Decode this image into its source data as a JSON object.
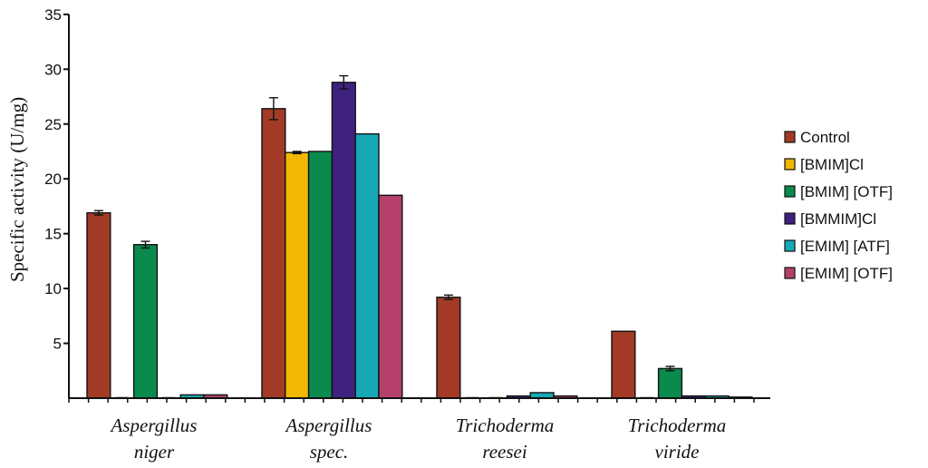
{
  "chart_data": {
    "type": "bar",
    "title": "",
    "xlabel": "",
    "ylabel": "Specific activity (U/mg)",
    "ylim": [
      0,
      35
    ],
    "yticks": [
      "5",
      "10",
      "15",
      "20",
      "25",
      "30",
      "35"
    ],
    "grid": false,
    "legend_position": "right",
    "categories": [
      {
        "line1": "Aspergillus",
        "line2": "niger"
      },
      {
        "line1": "Aspergillus",
        "line2": "spec."
      },
      {
        "line1": "Trichoderma",
        "line2": "reesei"
      },
      {
        "line1": "Trichoderma",
        "line2": "viride"
      }
    ],
    "series": [
      {
        "name": "Control",
        "color": "#a33a26",
        "values": [
          16.9,
          26.4,
          9.2,
          6.1
        ],
        "errors": [
          0.2,
          1.0,
          0.2,
          0
        ]
      },
      {
        "name": "[BMIM]Cl",
        "color": "#f2b705",
        "values": [
          0,
          22.4,
          0,
          0
        ],
        "errors": [
          0,
          0.1,
          0,
          0
        ]
      },
      {
        "name": "[BMIM] [OTF]",
        "color": "#0b8a4e",
        "values": [
          14.0,
          22.5,
          0,
          2.7
        ],
        "errors": [
          0.3,
          0,
          0,
          0.2
        ]
      },
      {
        "name": "[BMMIM]Cl",
        "color": "#3f2180",
        "values": [
          0,
          28.8,
          0.2,
          0.2
        ],
        "errors": [
          0,
          0.6,
          0,
          0
        ]
      },
      {
        "name": "[EMIM] [ATF]",
        "color": "#16a9b5",
        "values": [
          0.3,
          24.1,
          0.5,
          0.2
        ],
        "errors": [
          0,
          0,
          0,
          0
        ]
      },
      {
        "name": "[EMIM] [OTF]",
        "color": "#b5406b",
        "values": [
          0.3,
          18.5,
          0.2,
          0.1
        ],
        "errors": [
          0,
          0,
          0,
          0
        ]
      }
    ]
  }
}
